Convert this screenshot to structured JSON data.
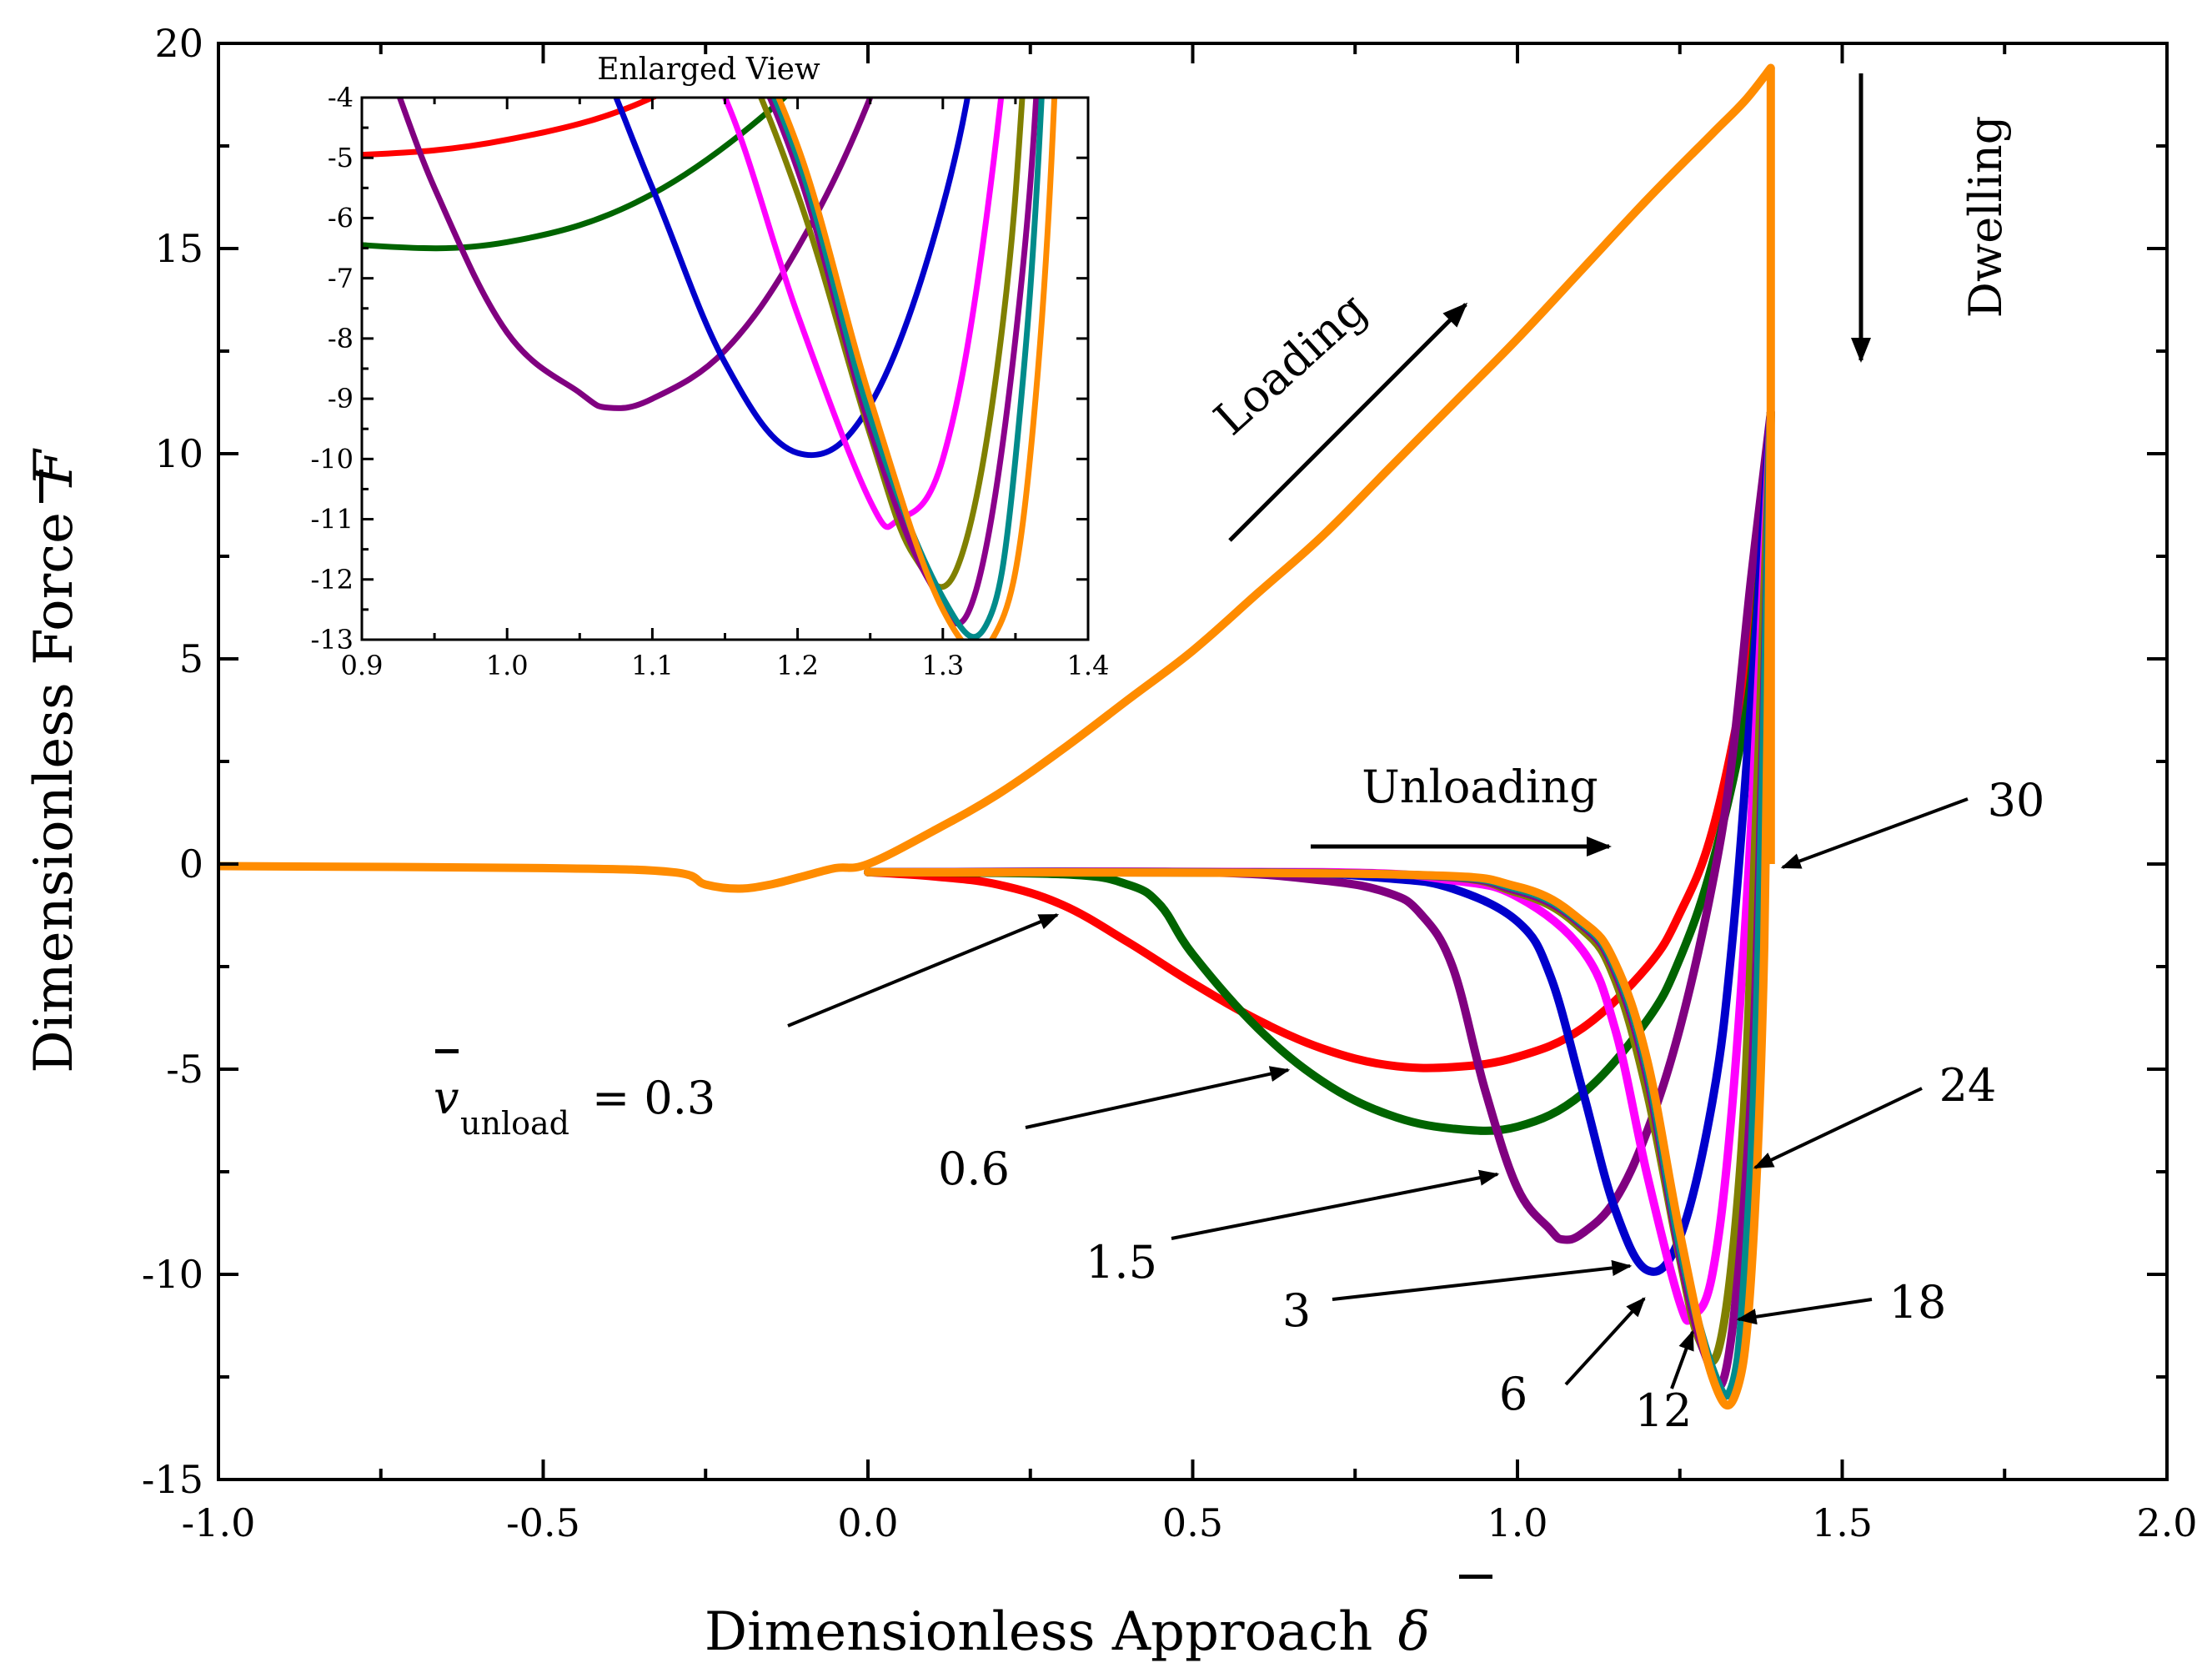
{
  "chart_data": {
    "type": "line",
    "xlabel": "Dimensionless Approach",
    "xlabel_symbol": "δ",
    "ylabel": "Dimensionless Force",
    "ylabel_symbol": "F",
    "xlim": [
      -1.0,
      2.0
    ],
    "ylim": [
      -15,
      20
    ],
    "x_ticks": [
      "-1.0",
      "-0.5",
      "0.0",
      "0.5",
      "1.0",
      "1.5",
      "2.0"
    ],
    "y_ticks": [
      "20",
      "15",
      "10",
      "5",
      "0",
      "-5",
      "-10",
      "-15"
    ],
    "grid": false,
    "loading_curve": {
      "x": [
        -1.0,
        -0.5,
        -0.3,
        -0.25,
        -0.2,
        -0.15,
        -0.1,
        -0.05,
        0.0,
        0.1,
        0.2,
        0.3,
        0.4,
        0.5,
        0.6,
        0.7,
        0.8,
        0.9,
        1.0,
        1.1,
        1.2,
        1.3,
        1.35,
        1.39
      ],
      "y": [
        -0.05,
        -0.1,
        -0.2,
        -0.5,
        -0.6,
        -0.5,
        -0.3,
        -0.1,
        0.0,
        0.8,
        1.7,
        2.8,
        4.0,
        5.2,
        6.6,
        8.0,
        9.6,
        11.2,
        12.8,
        14.5,
        16.2,
        17.8,
        18.6,
        19.4
      ]
    },
    "series": [
      {
        "color": "#ff0000",
        "x": [
          0.0,
          0.1,
          0.2,
          0.3,
          0.4,
          0.5,
          0.6,
          0.7,
          0.8,
          0.9,
          1.0,
          1.1,
          1.2,
          1.25,
          1.3,
          1.35,
          1.37,
          1.39
        ],
        "y": [
          -0.2,
          -0.3,
          -0.5,
          -1.0,
          -1.9,
          -2.9,
          -3.8,
          -4.5,
          -4.9,
          -4.95,
          -4.7,
          -4.0,
          -2.5,
          -1.2,
          0.8,
          4.5,
          7.0,
          11.0
        ]
      },
      {
        "color": "#006400",
        "x": [
          0.0,
          0.3,
          0.4,
          0.45,
          0.5,
          0.6,
          0.7,
          0.8,
          0.9,
          1.0,
          1.1,
          1.2,
          1.25,
          1.3,
          1.35,
          1.37,
          1.39
        ],
        "y": [
          -0.2,
          -0.25,
          -0.5,
          -1.0,
          -2.2,
          -4.0,
          -5.3,
          -6.1,
          -6.45,
          -6.4,
          -5.6,
          -3.8,
          -2.3,
          0.0,
          3.5,
          6.5,
          11.0
        ]
      },
      {
        "color": "#800080",
        "x": [
          0.0,
          0.5,
          0.7,
          0.8,
          0.85,
          0.9,
          0.95,
          1.0,
          1.05,
          1.07,
          1.1,
          1.15,
          1.2,
          1.25,
          1.3,
          1.33,
          1.36,
          1.39
        ],
        "y": [
          -0.2,
          -0.2,
          -0.4,
          -0.7,
          -1.2,
          -2.5,
          -5.5,
          -7.9,
          -8.9,
          -9.15,
          -9.0,
          -8.2,
          -6.5,
          -4.0,
          -0.5,
          2.5,
          7.0,
          11.0
        ]
      },
      {
        "color": "#0000cc",
        "x": [
          0.0,
          0.6,
          0.8,
          0.9,
          1.0,
          1.05,
          1.1,
          1.15,
          1.2,
          1.25,
          1.3,
          1.33,
          1.36,
          1.39
        ],
        "y": [
          -0.2,
          -0.2,
          -0.35,
          -0.6,
          -1.4,
          -2.7,
          -5.5,
          -8.4,
          -9.9,
          -9.1,
          -5.8,
          -2.0,
          4.0,
          11.0
        ]
      },
      {
        "color": "#ff00ff",
        "x": [
          0.0,
          0.7,
          0.9,
          1.0,
          1.1,
          1.15,
          1.2,
          1.25,
          1.27,
          1.3,
          1.33,
          1.36,
          1.39
        ],
        "y": [
          -0.2,
          -0.2,
          -0.4,
          -0.8,
          -2.1,
          -4.0,
          -7.6,
          -10.7,
          -11.0,
          -10.0,
          -6.0,
          1.0,
          11.0
        ]
      },
      {
        "color": "#808000",
        "x": [
          0.0,
          0.8,
          1.0,
          1.1,
          1.15,
          1.2,
          1.25,
          1.28,
          1.31,
          1.34,
          1.36,
          1.39
        ],
        "y": [
          -0.2,
          -0.25,
          -0.7,
          -1.6,
          -2.8,
          -5.6,
          -9.6,
          -11.6,
          -11.8,
          -8.0,
          -2.0,
          11.0
        ]
      },
      {
        "color": "#8b008b",
        "x": [
          0.0,
          0.8,
          1.0,
          1.1,
          1.15,
          1.2,
          1.25,
          1.29,
          1.32,
          1.35,
          1.37,
          1.39
        ],
        "y": [
          -0.2,
          -0.25,
          -0.65,
          -1.5,
          -2.6,
          -5.2,
          -9.5,
          -12.0,
          -12.4,
          -8.0,
          -1.5,
          11.0
        ]
      },
      {
        "color": "#008b8b",
        "x": [
          0.0,
          0.8,
          1.0,
          1.1,
          1.15,
          1.2,
          1.25,
          1.3,
          1.33,
          1.35,
          1.37,
          1.39
        ],
        "y": [
          -0.2,
          -0.25,
          -0.6,
          -1.45,
          -2.5,
          -5.0,
          -9.3,
          -12.3,
          -12.75,
          -10.0,
          -3.0,
          11.0
        ]
      },
      {
        "color": "#ff8c00",
        "x": [
          0.0,
          0.8,
          1.0,
          1.1,
          1.15,
          1.2,
          1.25,
          1.3,
          1.335,
          1.36,
          1.38,
          1.39
        ],
        "y": [
          -0.2,
          -0.25,
          -0.55,
          -1.4,
          -2.4,
          -4.8,
          -9.0,
          -12.5,
          -12.95,
          -10.0,
          -2.0,
          11.0
        ]
      }
    ],
    "inset": {
      "title": "Enlarged View",
      "xlim": [
        0.9,
        1.4
      ],
      "ylim": [
        -13,
        -4
      ],
      "x_ticks": [
        "0.9",
        "1.0",
        "1.1",
        "1.2",
        "1.3",
        "1.4"
      ],
      "y_ticks": [
        "-4",
        "-5",
        "-6",
        "-7",
        "-8",
        "-9",
        "-10",
        "-11",
        "-12",
        "-13"
      ]
    }
  },
  "annotations": {
    "loading": "Loading",
    "unloading": "Unloading",
    "dwelling": "Dwelling",
    "v_symbol": "v",
    "v_subscript": "unload",
    "v_value": "= 0.3",
    "label_06": "0.6",
    "label_15": "1.5",
    "label_3": "3",
    "label_6": "6",
    "label_12": "12",
    "label_18": "18",
    "label_24": "24",
    "label_30": "30"
  }
}
